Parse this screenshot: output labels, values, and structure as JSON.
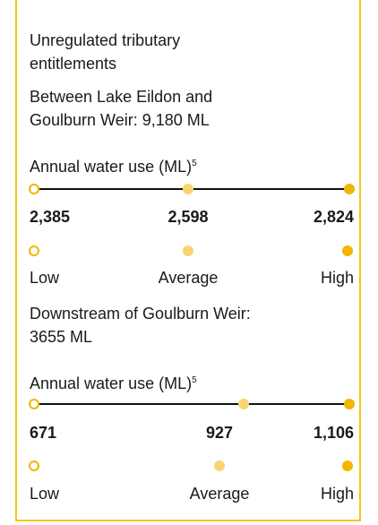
{
  "title_lines": [
    "Unregulated tributary",
    "entitlements"
  ],
  "sections": [
    {
      "heading_lines": [
        "Between Lake Eildon and",
        "Goulburn Weir: 9,180 ML"
      ],
      "subheading": "Annual water use (ML)",
      "footnote": "5",
      "values": [
        "2,385",
        "2,598",
        "2,824"
      ],
      "labels": [
        "Low",
        "Average",
        "High"
      ]
    },
    {
      "heading_lines": [
        "Downstream of Goulburn Weir:",
        "3655 ML"
      ],
      "subheading": "Annual water use (ML)",
      "footnote": "5",
      "values": [
        "671",
        "927",
        "1,106"
      ],
      "labels": [
        "Low",
        "Average",
        "High"
      ]
    }
  ]
}
